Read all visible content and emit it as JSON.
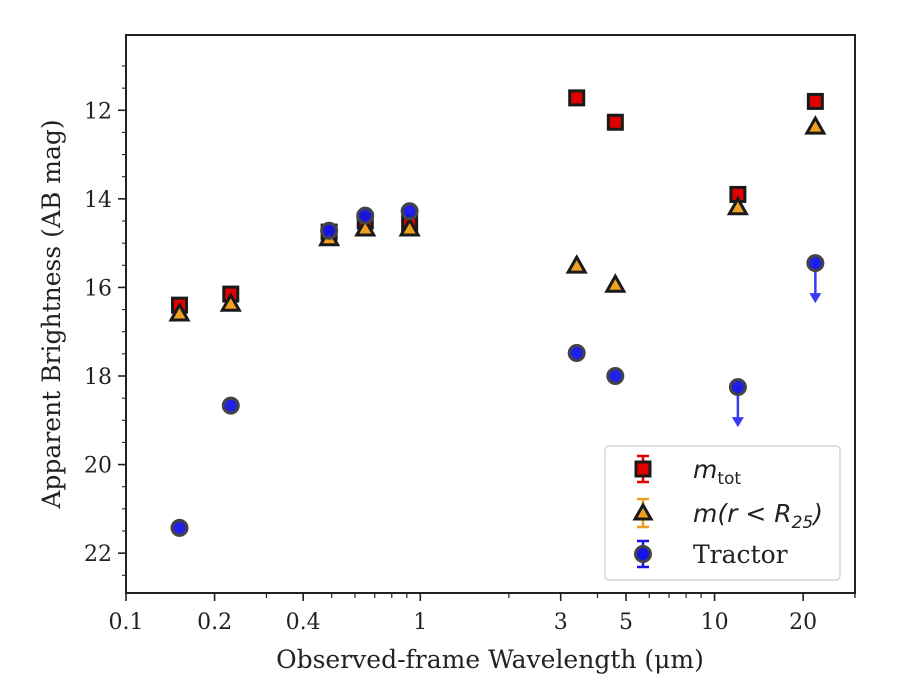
{
  "chart_data": {
    "type": "scatter",
    "xlabel": "Observed-frame Wavelength (μm)",
    "ylabel": "Apparent Brightness (AB mag)",
    "x_scale": "log",
    "xlim": [
      0.1,
      30
    ],
    "ylim": [
      22.9,
      10.3
    ],
    "y_inverted": true,
    "x_ticks": [
      {
        "value": 0.1,
        "label": "0.1"
      },
      {
        "value": 0.2,
        "label": "0.2"
      },
      {
        "value": 0.4,
        "label": "0.4"
      },
      {
        "value": 1,
        "label": "1"
      },
      {
        "value": 3,
        "label": "3"
      },
      {
        "value": 5,
        "label": "5"
      },
      {
        "value": 10,
        "label": "10"
      },
      {
        "value": 20,
        "label": "20"
      }
    ],
    "y_ticks": [
      {
        "value": 12,
        "label": "12"
      },
      {
        "value": 14,
        "label": "14"
      },
      {
        "value": 16,
        "label": "16"
      },
      {
        "value": 18,
        "label": "18"
      },
      {
        "value": 20,
        "label": "20"
      },
      {
        "value": 22,
        "label": "22"
      }
    ],
    "legend_position": "lower right",
    "grid": false,
    "series": [
      {
        "name": "m_tot",
        "marker": "square",
        "color": "#e00000",
        "edge": "#1a1a1a",
        "x": [
          0.152,
          0.227,
          0.49,
          0.65,
          0.92,
          3.4,
          4.6,
          12.0,
          22.0
        ],
        "y": [
          16.4,
          16.15,
          14.75,
          14.5,
          14.55,
          11.72,
          12.27,
          13.9,
          11.8
        ],
        "upper_limit": [
          false,
          false,
          false,
          false,
          false,
          false,
          false,
          false,
          false
        ]
      },
      {
        "name": "m(r<R25)",
        "marker": "triangle",
        "color": "#f0a020",
        "edge": "#1a1a1a",
        "x": [
          0.152,
          0.227,
          0.49,
          0.65,
          0.92,
          3.4,
          4.6,
          12.0,
          22.0
        ],
        "y": [
          16.6,
          16.38,
          14.9,
          14.68,
          14.68,
          15.52,
          15.95,
          14.2,
          12.38
        ],
        "upper_limit": [
          false,
          false,
          false,
          false,
          false,
          false,
          false,
          false,
          false
        ]
      },
      {
        "name": "Tractor",
        "marker": "circle",
        "color": "#1414e6",
        "edge": "#444444",
        "x": [
          0.152,
          0.227,
          0.49,
          0.65,
          0.92,
          3.4,
          4.6,
          12.0,
          22.0
        ],
        "y": [
          21.43,
          18.67,
          14.72,
          14.38,
          14.28,
          17.48,
          18.0,
          18.25,
          15.45
        ],
        "upper_limit": [
          false,
          false,
          false,
          false,
          false,
          false,
          false,
          true,
          true
        ]
      }
    ],
    "legend": {
      "tot_main": "m",
      "tot_sub": "tot",
      "r25_pre": "m(r < R",
      "r25_sub": "25",
      "r25_post": ")",
      "tractor": "Tractor"
    }
  }
}
